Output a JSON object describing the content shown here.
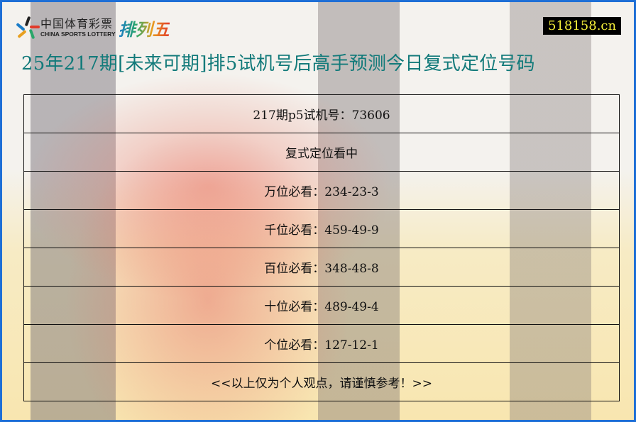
{
  "header": {
    "logo_cn": "中国体育彩票",
    "logo_en": "CHINA SPORTS LOTTERY",
    "logo_game": "排列五",
    "site": "518158.cn"
  },
  "title": "25年217期[未来可期]排5试机号后高手预测今日复式定位号码",
  "rows": [
    "217期p5试机号：73606",
    "复式定位看中",
    "万位必看：234-23-3",
    "千位必看：459-49-9",
    "百位必看：348-48-8",
    "十位必看：489-49-4",
    "个位必看：127-12-1",
    "<<以上仅为个人观点，请谨慎参考！>>"
  ],
  "colors": {
    "border": "#1e6fd6",
    "title": "#127a7a",
    "site_bg": "#000000",
    "site_text": "#f6f03a"
  }
}
